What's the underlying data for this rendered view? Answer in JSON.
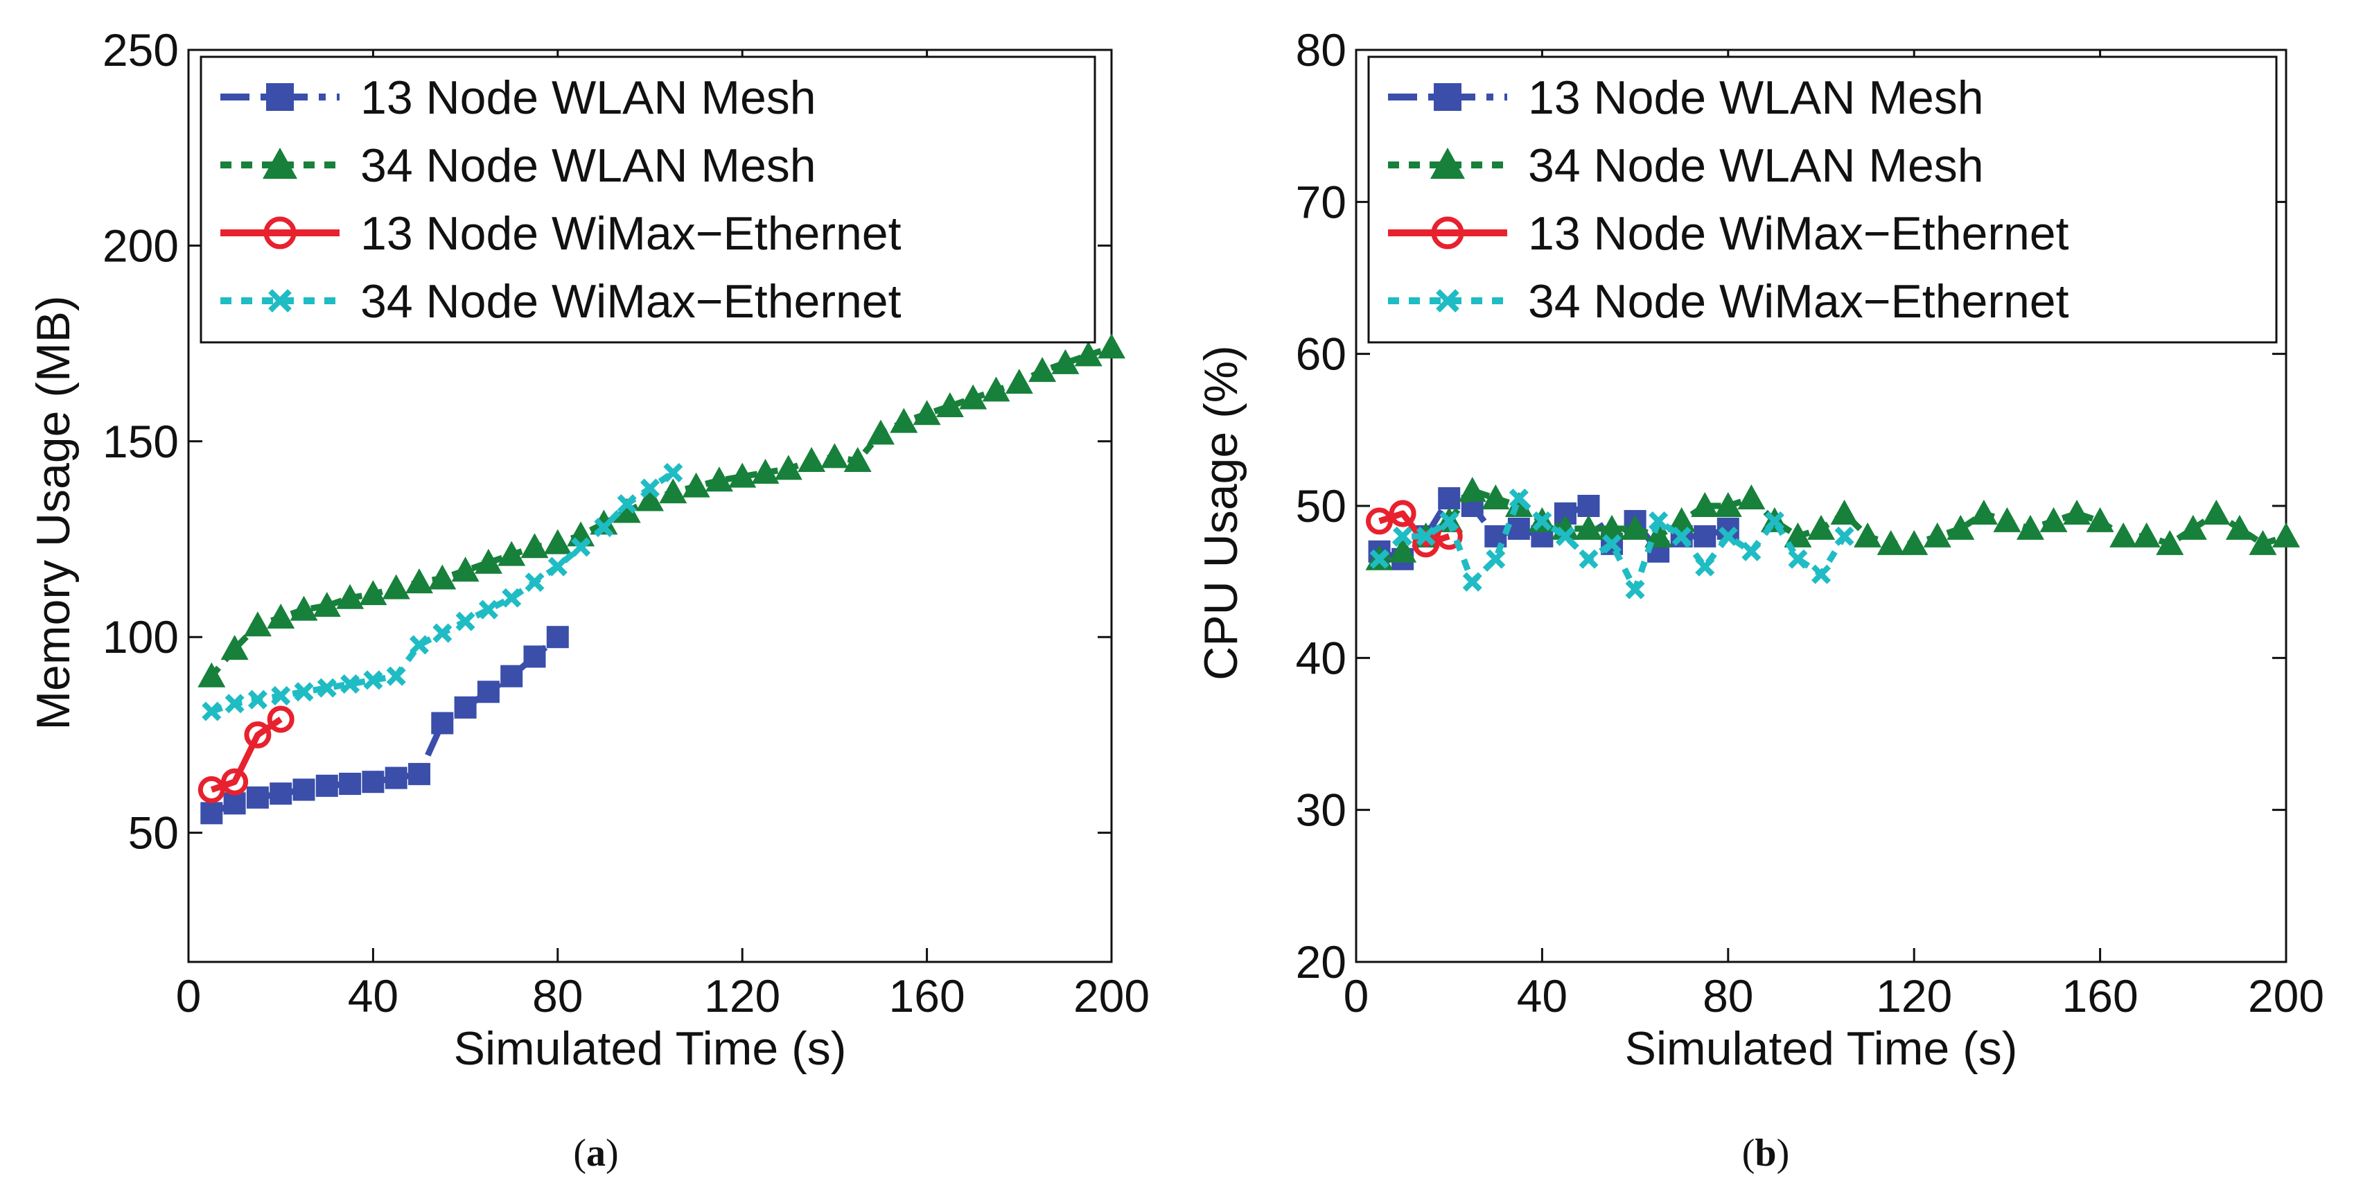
{
  "chart_data": [
    {
      "type": "line",
      "panel_label": "a",
      "title": "",
      "xlabel": "Simulated Time (s)",
      "ylabel": "Memory Usage (MB)",
      "xlim": [
        0,
        200
      ],
      "ylim": [
        17,
        250
      ],
      "xticks": [
        0,
        40,
        80,
        120,
        160,
        200
      ],
      "yticks": [
        50,
        100,
        150,
        200,
        250
      ],
      "grid": false,
      "legend_position": "top-right",
      "series": [
        {
          "name": "13 Node WLAN Mesh",
          "color": "#3a4eaa",
          "marker": "square",
          "line_style": "dash-dot",
          "x": [
            5,
            10,
            15,
            20,
            25,
            30,
            35,
            40,
            45,
            50,
            55,
            60,
            65,
            70,
            75,
            80
          ],
          "y": [
            55,
            57.5,
            59,
            60,
            61,
            62,
            62.5,
            63,
            64,
            65,
            78,
            82,
            86,
            90,
            95,
            100
          ]
        },
        {
          "name": "34 Node WLAN Mesh",
          "color": "#17803a",
          "marker": "triangle",
          "line_style": "dotted",
          "x": [
            5,
            10,
            15,
            20,
            25,
            30,
            35,
            40,
            45,
            50,
            55,
            60,
            65,
            70,
            75,
            80,
            85,
            90,
            95,
            100,
            105,
            110,
            115,
            120,
            125,
            130,
            135,
            140,
            145,
            150,
            155,
            160,
            165,
            170,
            175,
            180,
            185,
            190,
            195,
            200
          ],
          "y": [
            90,
            97,
            103,
            105,
            107,
            108,
            110,
            111,
            112.5,
            114,
            115,
            117,
            119,
            121,
            123,
            124,
            126,
            129,
            132,
            135,
            137,
            138.5,
            140,
            141,
            142,
            143,
            145,
            146,
            145,
            152,
            155,
            157,
            159,
            161,
            163,
            165,
            168,
            170,
            172,
            174
          ]
        },
        {
          "name": "13 Node WiMax−Ethernet",
          "color": "#e8212e",
          "marker": "circle",
          "line_style": "solid",
          "x": [
            5,
            10,
            15,
            20
          ],
          "y": [
            61,
            63,
            75,
            79
          ]
        },
        {
          "name": "34 Node WiMax−Ethernet",
          "color": "#1fbcc4",
          "marker": "x",
          "line_style": "dotted",
          "x": [
            5,
            10,
            15,
            20,
            25,
            30,
            35,
            40,
            45,
            50,
            55,
            60,
            65,
            70,
            75,
            80,
            85,
            90,
            95,
            100,
            105
          ],
          "y": [
            81,
            83,
            84,
            85,
            86,
            87,
            88,
            89,
            90,
            98,
            101,
            104,
            107,
            110,
            114,
            118,
            123,
            128,
            134,
            138,
            142
          ]
        }
      ]
    },
    {
      "type": "line",
      "panel_label": "b",
      "title": "",
      "xlabel": "Simulated Time (s)",
      "ylabel": "CPU Usage (%)",
      "xlim": [
        0,
        200
      ],
      "ylim": [
        20,
        80
      ],
      "xticks": [
        0,
        40,
        80,
        120,
        160,
        200
      ],
      "yticks": [
        20,
        30,
        40,
        50,
        60,
        70,
        80
      ],
      "grid": false,
      "legend_position": "top-right",
      "series": [
        {
          "name": "13 Node WLAN Mesh",
          "color": "#3a4eaa",
          "marker": "square",
          "line_style": "dash-dot",
          "x": [
            5,
            10,
            15,
            20,
            25,
            30,
            35,
            40,
            45,
            50,
            55,
            60,
            65,
            70,
            75,
            80
          ],
          "y": [
            47,
            46.5,
            48,
            50.5,
            50,
            48,
            48.5,
            48,
            49.5,
            50,
            47.5,
            49,
            47,
            48,
            48,
            48.5
          ]
        },
        {
          "name": "34 Node WLAN Mesh",
          "color": "#17803a",
          "marker": "triangle",
          "line_style": "dotted",
          "x": [
            5,
            10,
            15,
            20,
            25,
            30,
            35,
            40,
            45,
            50,
            55,
            60,
            65,
            70,
            75,
            80,
            85,
            90,
            95,
            100,
            105,
            110,
            115,
            120,
            125,
            130,
            135,
            140,
            145,
            150,
            155,
            160,
            165,
            170,
            175,
            180,
            185,
            190,
            195,
            200
          ],
          "y": [
            46.5,
            47,
            48,
            49,
            51,
            50.5,
            50,
            49,
            48.5,
            48.5,
            48.5,
            48.5,
            48,
            49,
            50,
            50,
            50.5,
            49,
            48,
            48.5,
            49.5,
            48,
            47.5,
            47.5,
            48,
            48.5,
            49.5,
            49,
            48.5,
            49,
            49.5,
            49,
            48,
            48,
            47.5,
            48.5,
            49.5,
            48.5,
            47.5,
            48
          ]
        },
        {
          "name": "13 Node WiMax−Ethernet",
          "color": "#e8212e",
          "marker": "circle",
          "line_style": "solid",
          "x": [
            5,
            10,
            15,
            20
          ],
          "y": [
            49,
            49.5,
            47.5,
            48
          ]
        },
        {
          "name": "34 Node WiMax−Ethernet",
          "color": "#1fbcc4",
          "marker": "x",
          "line_style": "dotted",
          "x": [
            5,
            10,
            15,
            20,
            25,
            30,
            35,
            40,
            45,
            50,
            55,
            60,
            65,
            70,
            75,
            80,
            85,
            90,
            95,
            100,
            105
          ],
          "y": [
            46.5,
            48,
            48,
            49,
            45,
            46.5,
            50.5,
            49,
            48,
            46.5,
            47.5,
            44.5,
            49,
            48,
            46,
            48,
            47,
            49,
            46.5,
            45.5,
            48
          ]
        }
      ]
    }
  ],
  "captions": [
    {
      "open": "(",
      "label": "a",
      "close": ")"
    },
    {
      "open": "(",
      "label": "b",
      "close": ")"
    }
  ]
}
